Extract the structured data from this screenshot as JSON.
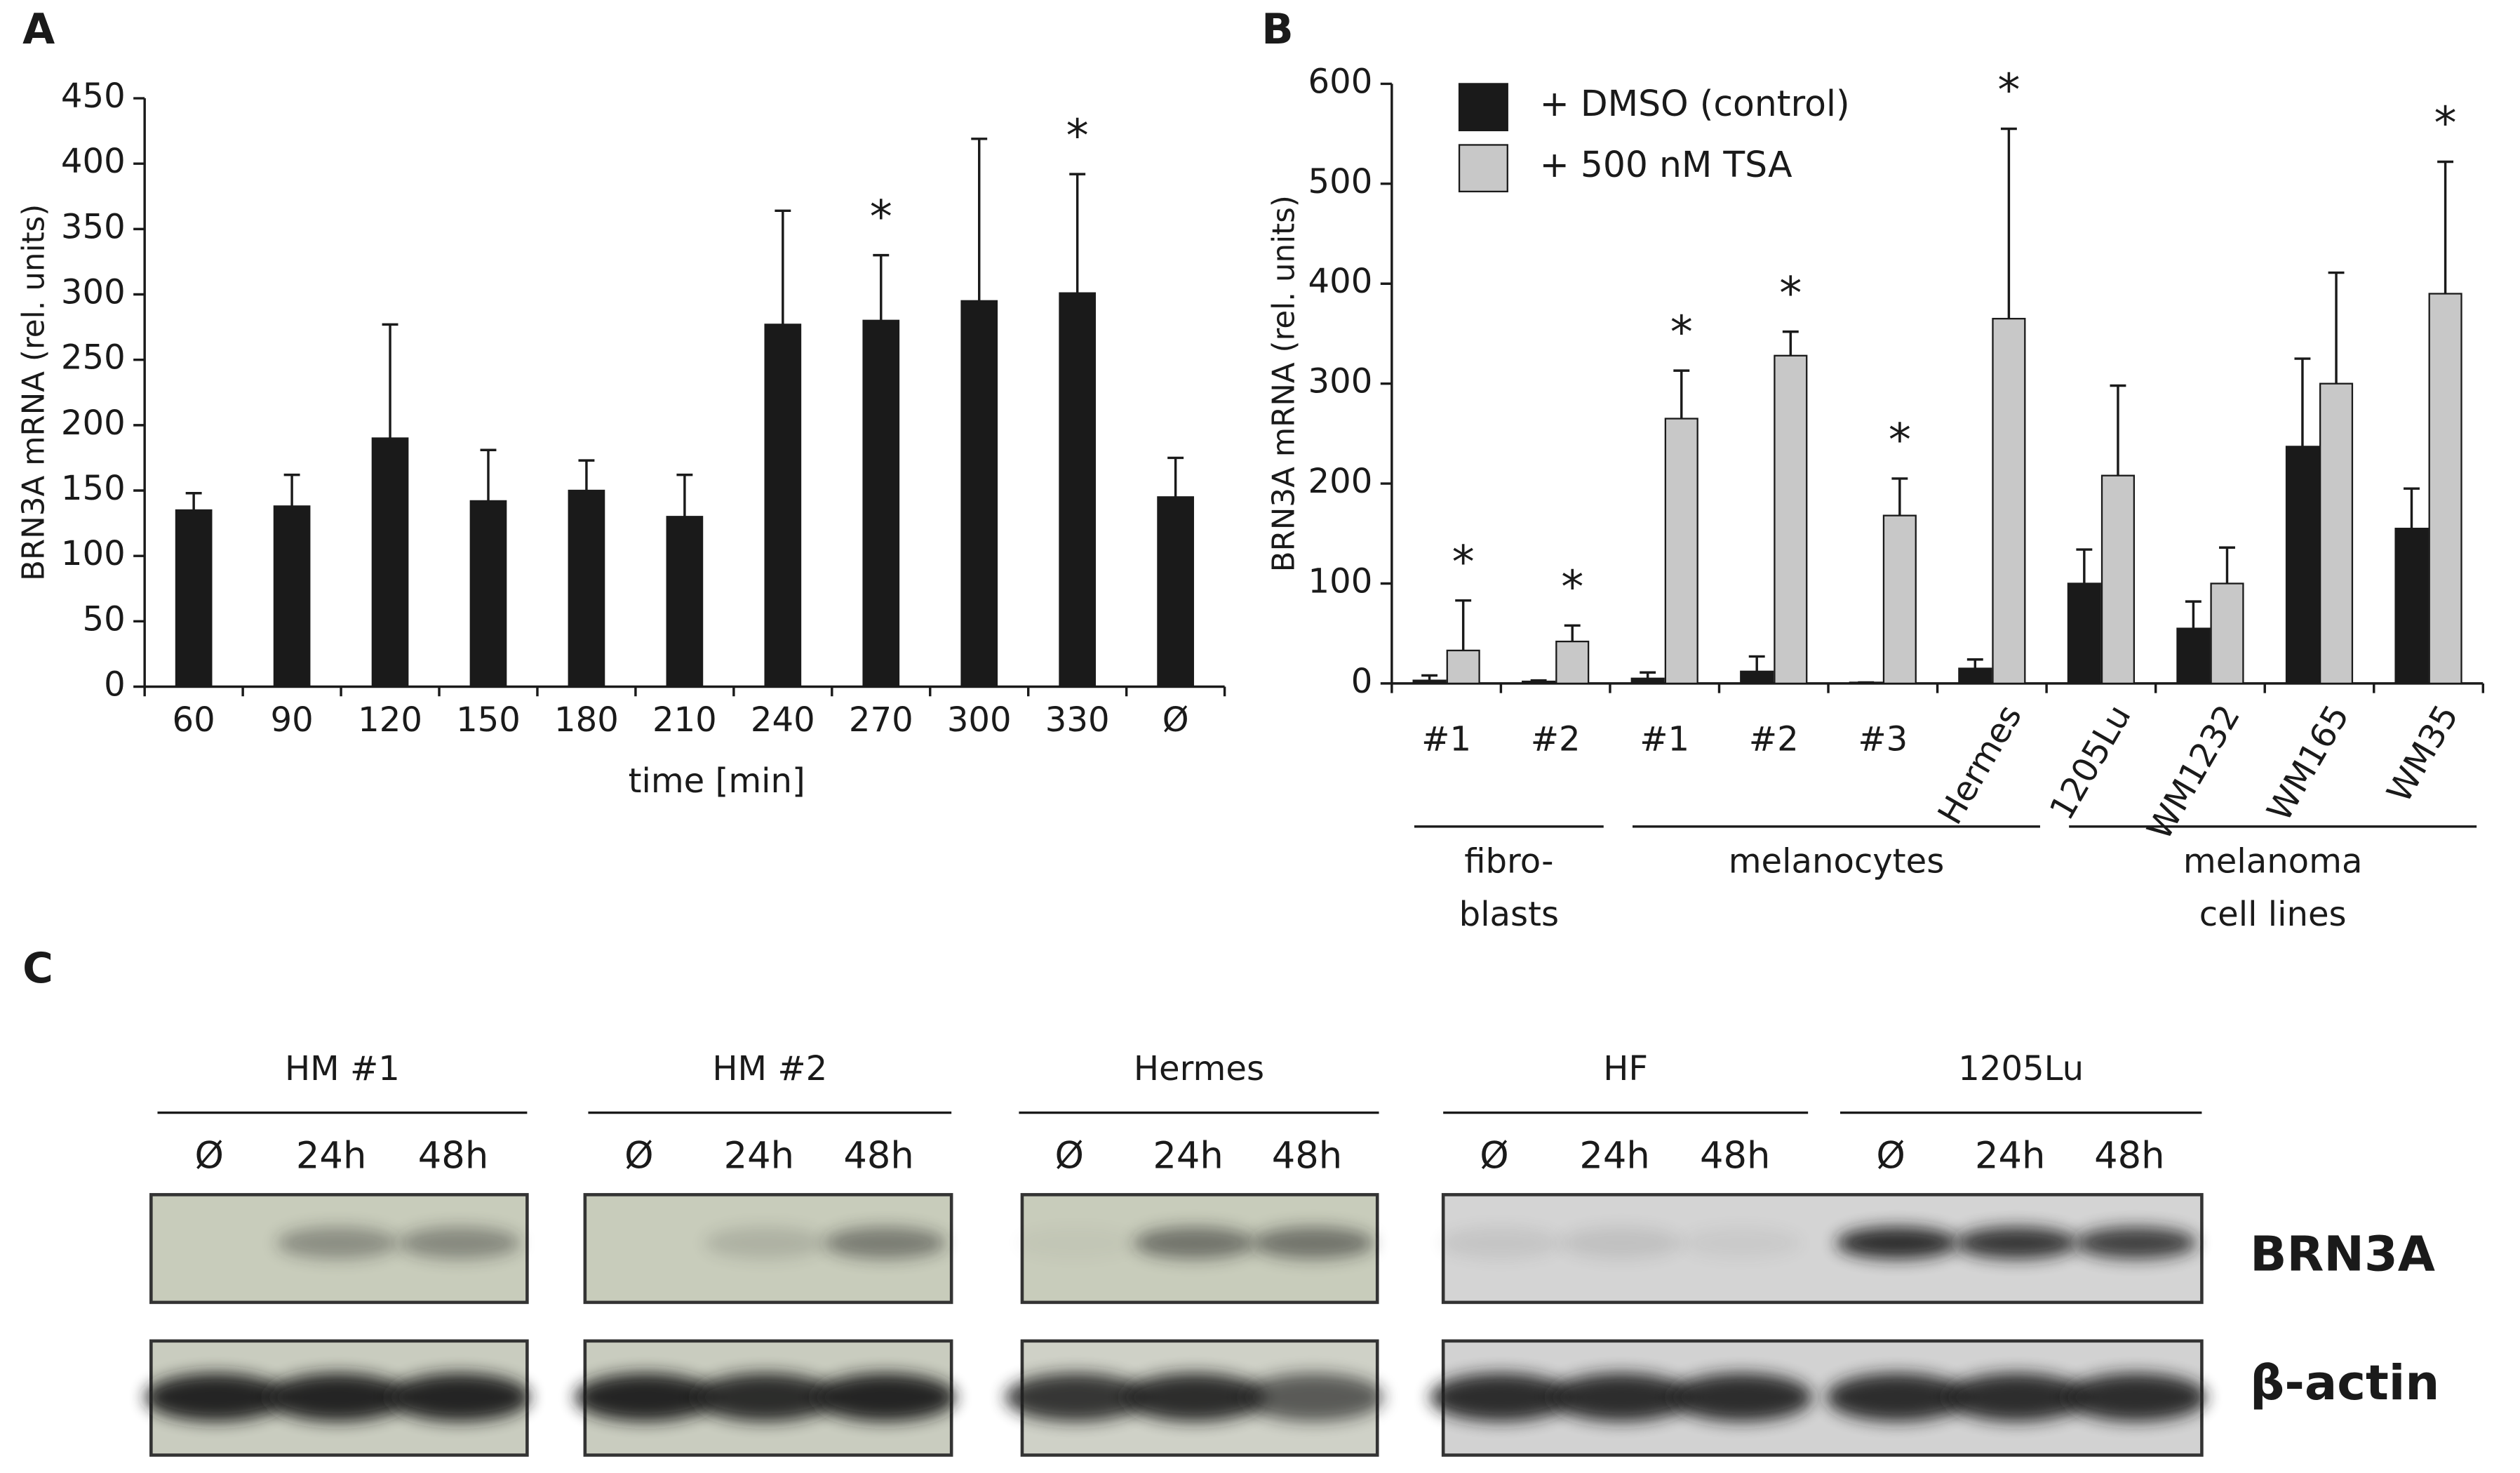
{
  "chart_data": [
    {
      "type": "bar",
      "panel": "A",
      "y_label": "BRN3A mRNA (rel. units)",
      "x_label": "time [min]",
      "categories": [
        "60",
        "90",
        "120",
        "150",
        "180",
        "210",
        "240",
        "270",
        "300",
        "330",
        "Ø"
      ],
      "values": [
        135,
        138,
        190,
        142,
        150,
        130,
        277,
        280,
        295,
        301,
        145
      ],
      "errors": [
        13,
        24,
        87,
        39,
        23,
        32,
        87,
        50,
        124,
        91,
        30
      ],
      "significance": [
        null,
        null,
        null,
        null,
        null,
        null,
        null,
        "*",
        null,
        "*",
        null
      ],
      "color": "#1a1a1a",
      "ylim": [
        0,
        450
      ],
      "yticks": [
        0,
        50,
        100,
        150,
        200,
        250,
        300,
        350,
        400,
        450
      ]
    },
    {
      "type": "grouped_bar",
      "panel": "B",
      "y_label": "BRN3A mRNA (rel. units)",
      "groups": [
        {
          "label": [
            "fibro-",
            "blasts"
          ],
          "categories": [
            "#1",
            "#2"
          ]
        },
        {
          "label": [
            "melanocytes"
          ],
          "categories": [
            "#1",
            "#2",
            "#3",
            "Hermes"
          ]
        },
        {
          "label": [
            "melanoma",
            "cell lines"
          ],
          "categories": [
            "1205Lu",
            "WM1232",
            "WM165",
            "WM35"
          ]
        }
      ],
      "series": [
        {
          "name": "+ DMSO (control)",
          "color": "#1a1a1a",
          "values": [
            3,
            2,
            5,
            12,
            1,
            15,
            100,
            55,
            237,
            155
          ],
          "errors": [
            5,
            1,
            6,
            15,
            0,
            9,
            34,
            27,
            88,
            40
          ],
          "significance": [
            null,
            null,
            null,
            null,
            null,
            null,
            null,
            null,
            null,
            null
          ]
        },
        {
          "name": "+ 500 nM TSA",
          "color": "#c8c8c8",
          "values": [
            33,
            42,
            265,
            328,
            168,
            365,
            208,
            100,
            300,
            390
          ],
          "errors": [
            50,
            16,
            48,
            24,
            37,
            190,
            90,
            36,
            111,
            132
          ],
          "significance": [
            "*",
            "*",
            "*",
            "*",
            "*",
            "*",
            null,
            null,
            null,
            "*"
          ]
        }
      ],
      "ylim": [
        0,
        600
      ],
      "yticks": [
        0,
        100,
        200,
        300,
        400,
        500,
        600
      ]
    }
  ],
  "blot": {
    "panel": "C",
    "groups": [
      {
        "name": "HM #1",
        "lanes": [
          "Ø",
          "24h",
          "48h"
        ]
      },
      {
        "name": "HM #2",
        "lanes": [
          "Ø",
          "24h",
          "48h"
        ]
      },
      {
        "name": "Hermes",
        "lanes": [
          "Ø",
          "24h",
          "48h"
        ]
      },
      {
        "name": "HF",
        "lanes": [
          "Ø",
          "24h",
          "48h"
        ]
      },
      {
        "name": "1205Lu",
        "lanes": [
          "Ø",
          "24h",
          "48h"
        ]
      }
    ],
    "rows": [
      "BRN3A",
      "β-actin"
    ]
  }
}
